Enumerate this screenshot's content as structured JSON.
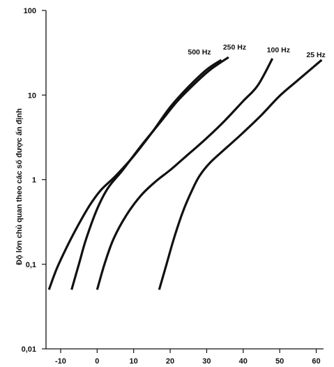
{
  "chart_data": {
    "type": "line",
    "title": "",
    "xlabel": "",
    "ylabel": "Độ lớn chủ quan theo các số được ấn định",
    "xscale": "linear",
    "yscale": "log",
    "xlim": [
      -14,
      62
    ],
    "ylim": [
      0.01,
      100
    ],
    "grid": false,
    "x_ticks": [
      -10,
      0,
      10,
      20,
      30,
      40,
      50,
      60
    ],
    "x_tick_labels": [
      "-10",
      "0",
      "10",
      "20",
      "30",
      "40",
      "50",
      "60"
    ],
    "y_ticks": [
      0.01,
      0.1,
      1,
      10,
      100
    ],
    "y_tick_labels": [
      "0,01",
      "0,1",
      "1",
      "10",
      "100"
    ],
    "series": [
      {
        "name": "500 Hz",
        "points": [
          [
            -13.2,
            0.05
          ],
          [
            -11,
            0.09
          ],
          [
            -8,
            0.17
          ],
          [
            -5,
            0.3
          ],
          [
            -2,
            0.5
          ],
          [
            1,
            0.75
          ],
          [
            5,
            1.1
          ],
          [
            10,
            1.9
          ],
          [
            15,
            3.6
          ],
          [
            20,
            7.2
          ],
          [
            25,
            12.5
          ],
          [
            30,
            20
          ],
          [
            34,
            26
          ]
        ]
      },
      {
        "name": "250 Hz",
        "points": [
          [
            -7,
            0.05
          ],
          [
            -5,
            0.1
          ],
          [
            -3,
            0.2
          ],
          [
            0,
            0.45
          ],
          [
            3,
            0.8
          ],
          [
            7,
            1.3
          ],
          [
            12,
            2.5
          ],
          [
            17,
            4.6
          ],
          [
            22,
            8.5
          ],
          [
            27,
            14
          ],
          [
            31,
            20
          ],
          [
            36,
            28
          ]
        ]
      },
      {
        "name": "100 Hz",
        "points": [
          [
            0,
            0.05
          ],
          [
            2,
            0.1
          ],
          [
            4.5,
            0.2
          ],
          [
            8,
            0.38
          ],
          [
            12,
            0.65
          ],
          [
            16,
            0.95
          ],
          [
            20,
            1.3
          ],
          [
            25,
            2
          ],
          [
            30,
            3.1
          ],
          [
            35,
            5
          ],
          [
            40,
            8.5
          ],
          [
            44,
            13
          ],
          [
            48,
            27
          ]
        ]
      },
      {
        "name": "25 Hz",
        "points": [
          [
            17,
            0.05
          ],
          [
            19,
            0.1
          ],
          [
            21,
            0.2
          ],
          [
            23.5,
            0.42
          ],
          [
            26,
            0.75
          ],
          [
            28,
            1.1
          ],
          [
            31,
            1.6
          ],
          [
            35,
            2.3
          ],
          [
            40,
            3.6
          ],
          [
            45,
            5.8
          ],
          [
            50,
            9.8
          ],
          [
            55,
            15
          ],
          [
            61.5,
            26
          ]
        ]
      }
    ],
    "series_labels": [
      "500 Hz",
      "250 Hz",
      "100 Hz",
      "25 Hz"
    ]
  }
}
